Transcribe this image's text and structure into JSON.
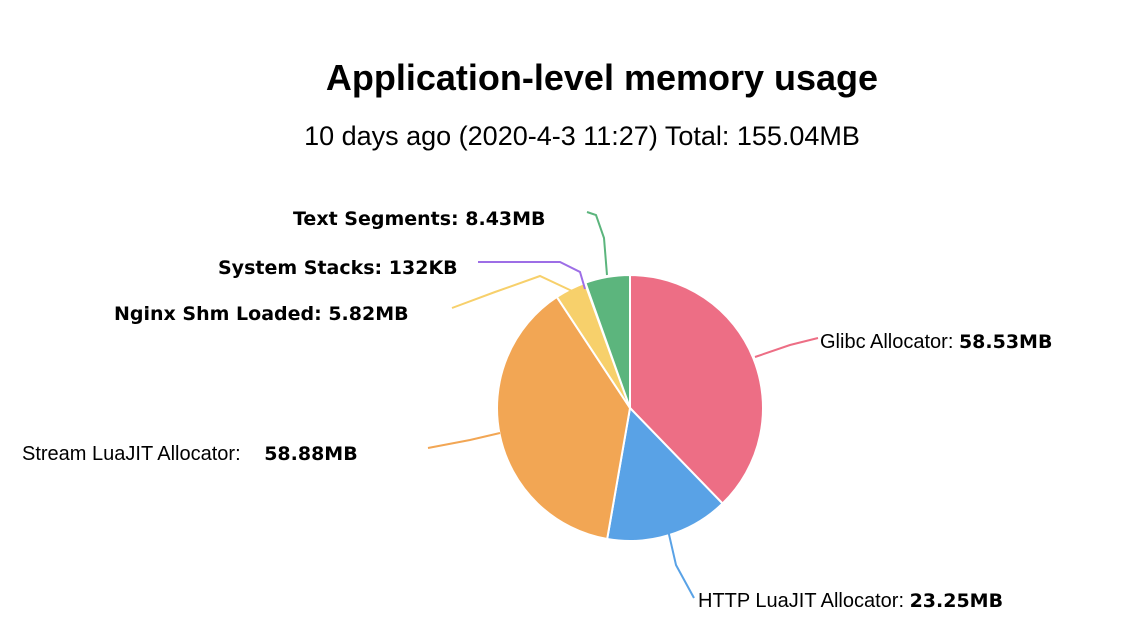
{
  "chart_data": {
    "type": "pie",
    "title": "Application-level memory usage",
    "subtitle": "10 days ago (2020-4-3 11:27) Total: 155.04MB",
    "slices": [
      {
        "name": "Glibc Allocator",
        "value_label": "58.53MB",
        "value": 58.53,
        "color": "#ed6e85"
      },
      {
        "name": "HTTP LuaJIT Allocator",
        "value_label": "23.25MB",
        "value": 23.25,
        "color": "#59a2e6"
      },
      {
        "name": "Stream LuaJIT Allocator",
        "value_label": "58.88MB",
        "value": 58.88,
        "color": "#f2a654"
      },
      {
        "name": "Nginx Shm Loaded",
        "value_label": "5.82MB",
        "value": 5.82,
        "color": "#f7d06b"
      },
      {
        "name": "System Stacks",
        "value_label": "132KB",
        "value": 0.13,
        "color": "#9d6ee6"
      },
      {
        "name": "Text Segments",
        "value_label": "8.43MB",
        "value": 8.43,
        "color": "#5cb57d"
      }
    ]
  }
}
